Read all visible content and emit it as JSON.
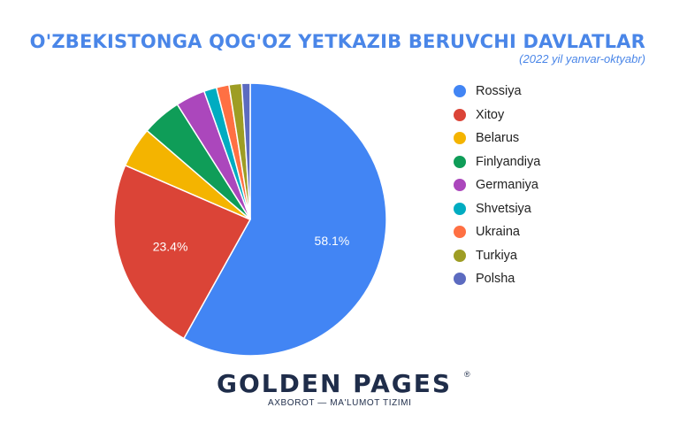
{
  "chart_data": {
    "type": "pie",
    "title": "O'ZBEKISTONGA QOG'OZ YETKAZIB BERUVCHI DAVLATLAR",
    "subtitle": "(2022 yil yanvar-oktyabr)",
    "legend_position": "right",
    "slices": [
      {
        "label": "Rossiya",
        "value": 58.1,
        "color": "#4285f4",
        "data_label": "58.1%"
      },
      {
        "label": "Xitoy",
        "value": 23.4,
        "color": "#db4437",
        "data_label": "23.4%"
      },
      {
        "label": "Belarus",
        "value": 4.8,
        "color": "#f4b400",
        "data_label": ""
      },
      {
        "label": "Finlyandiya",
        "value": 4.7,
        "color": "#0f9d58",
        "data_label": ""
      },
      {
        "label": "Germaniya",
        "value": 3.5,
        "color": "#ab47bc",
        "data_label": ""
      },
      {
        "label": "Shvetsiya",
        "value": 1.5,
        "color": "#00acc1",
        "data_label": ""
      },
      {
        "label": "Ukraina",
        "value": 1.5,
        "color": "#ff7043",
        "data_label": ""
      },
      {
        "label": "Turkiya",
        "value": 1.5,
        "color": "#9e9d24",
        "data_label": ""
      },
      {
        "label": "Polsha",
        "value": 1.0,
        "color": "#5c6bc0",
        "data_label": ""
      }
    ]
  },
  "logo": {
    "name": "GOLDEN PAGES",
    "registered": "®",
    "tagline": "AXBOROT — MA'LUMOT TIZIMI"
  }
}
